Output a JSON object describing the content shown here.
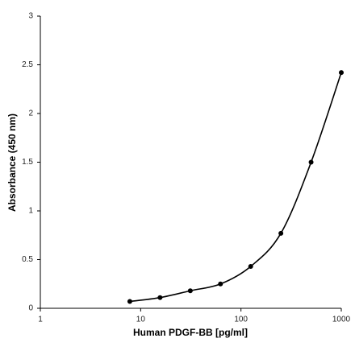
{
  "chart_data": {
    "type": "line",
    "xscale": "log",
    "xlabel": "Human PDGF-BB [pg/ml]",
    "ylabel": "Absorbance (450 nm)",
    "series": [
      {
        "color": "#000000",
        "x": [
          7.8,
          15.6,
          31.25,
          62.5,
          125,
          250,
          500,
          1000
        ],
        "values": [
          0.07,
          0.11,
          0.18,
          0.25,
          0.43,
          0.77,
          1.5,
          2.42
        ]
      }
    ],
    "xlim": [
      1,
      1000
    ],
    "xticks": [
      1,
      10,
      100,
      1000
    ],
    "ylim": [
      0,
      3
    ],
    "yticks": [
      0,
      0.5,
      1,
      1.5,
      2,
      2.5,
      3
    ],
    "grid": false
  }
}
